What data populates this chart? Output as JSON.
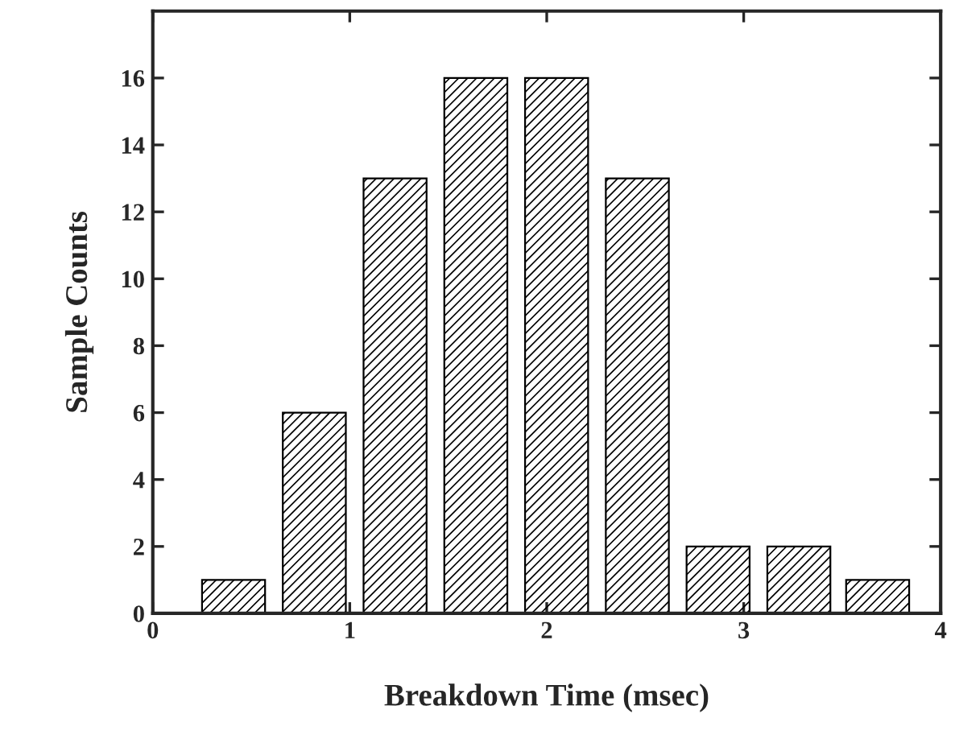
{
  "chart_data": {
    "type": "bar",
    "xlabel": "Breakdown Time (msec)",
    "ylabel": "Sample Counts",
    "x": [
      0.41,
      0.82,
      1.23,
      1.64,
      2.05,
      2.46,
      2.87,
      3.28,
      3.68
    ],
    "values": [
      1,
      6,
      13,
      16,
      16,
      13,
      2,
      2,
      1
    ],
    "color": "#000000",
    "xlim": [
      0,
      4
    ],
    "xticks": [
      0,
      1,
      2,
      3,
      4
    ],
    "ylim": [
      0,
      18
    ],
    "yticks": [
      0,
      2,
      4,
      6,
      8,
      10,
      12,
      14,
      16
    ],
    "grid": false,
    "legend": false
  }
}
